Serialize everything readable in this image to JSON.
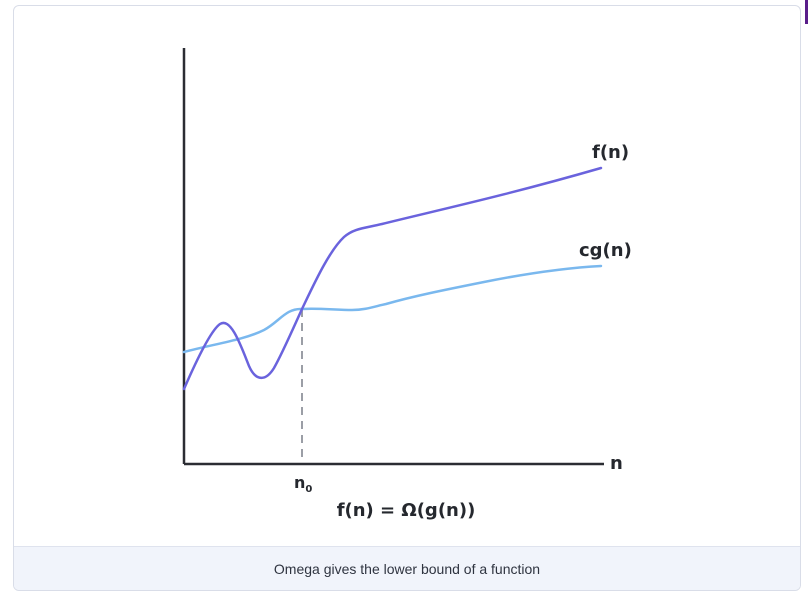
{
  "diagram": {
    "curve_f_label": "f(n)",
    "curve_cg_label": "cg(n)",
    "x_axis_label": "n",
    "threshold_label": "n",
    "threshold_subscript": "0",
    "equation": "f(n) = Ω(g(n))"
  },
  "caption": "Omega gives the lower bound of a function",
  "colors": {
    "f_curve": "#6a63dd",
    "cg_curve": "#7ab8ee",
    "axis": "#2b2d33",
    "threshold_line": "#9b9ea6"
  }
}
